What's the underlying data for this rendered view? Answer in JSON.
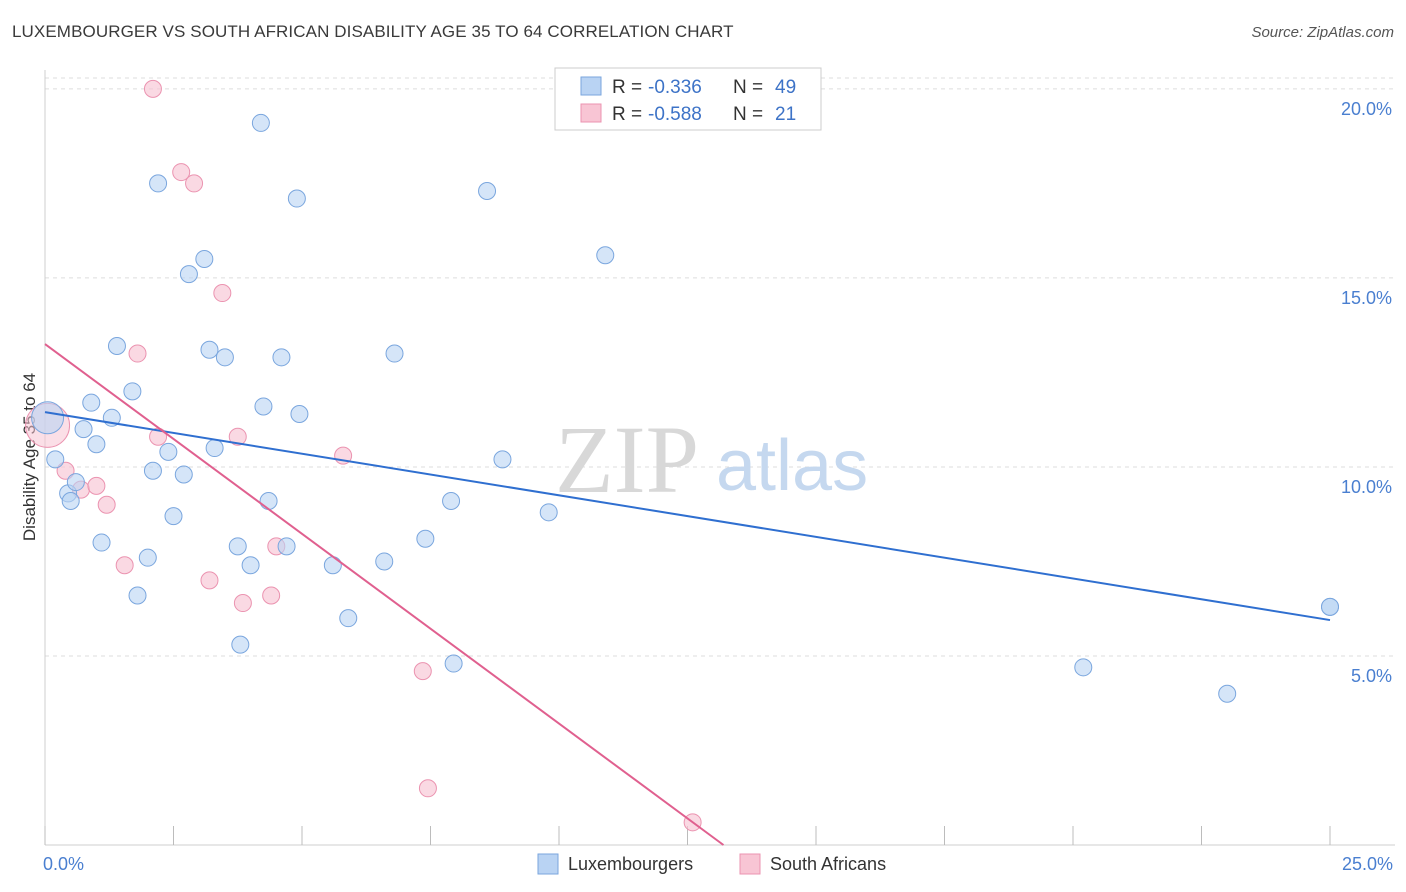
{
  "title": "LUXEMBOURGER VS SOUTH AFRICAN DISABILITY AGE 35 TO 64 CORRELATION CHART",
  "source": "Source: ZipAtlas.com",
  "watermark": {
    "zip": "ZIP",
    "atlas": "atlas"
  },
  "colors": {
    "lux_fill": "#b9d3f3",
    "lux_stroke": "#7aa6de",
    "lux_line": "#2f6fd0",
    "sa_fill": "#f8c5d4",
    "sa_stroke": "#eb93b0",
    "sa_line": "#e0608f",
    "tick_text": "#4a7fd0",
    "grid": "#dddddd"
  },
  "stats": [
    {
      "r_label": "R =",
      "r_value": "-0.336",
      "n_label": "N =",
      "n_value": "49"
    },
    {
      "r_label": "R =",
      "r_value": "-0.588",
      "n_label": "N =",
      "n_value": "21"
    }
  ],
  "chart_data": {
    "type": "scatter",
    "xlabel": "",
    "ylabel": "Disability Age 35 to 64",
    "xlim": [
      0,
      25
    ],
    "ylim": [
      0,
      20.5
    ],
    "x_tick_labels": [
      "0.0%",
      "25.0%"
    ],
    "y_ticks": [
      5,
      10,
      15,
      20
    ],
    "y_tick_labels": [
      "5.0%",
      "10.0%",
      "15.0%",
      "20.0%"
    ],
    "grid": true,
    "legend_position": "bottom",
    "series": [
      {
        "name": "Luxembourgers",
        "points": [
          [
            0.05,
            11.3
          ],
          [
            0.2,
            10.2
          ],
          [
            0.45,
            9.3
          ],
          [
            0.5,
            9.1
          ],
          [
            0.6,
            9.6
          ],
          [
            0.75,
            11.0
          ],
          [
            0.9,
            11.7
          ],
          [
            1.0,
            10.6
          ],
          [
            1.1,
            8.0
          ],
          [
            1.3,
            11.3
          ],
          [
            1.4,
            13.2
          ],
          [
            1.7,
            12.0
          ],
          [
            1.8,
            6.6
          ],
          [
            2.0,
            7.6
          ],
          [
            2.1,
            9.9
          ],
          [
            2.2,
            17.5
          ],
          [
            2.4,
            10.4
          ],
          [
            2.5,
            8.7
          ],
          [
            2.7,
            9.8
          ],
          [
            2.8,
            15.1
          ],
          [
            3.1,
            15.5
          ],
          [
            3.2,
            13.1
          ],
          [
            3.3,
            10.5
          ],
          [
            3.5,
            12.9
          ],
          [
            3.75,
            7.9
          ],
          [
            3.8,
            5.3
          ],
          [
            4.0,
            7.4
          ],
          [
            4.2,
            19.1
          ],
          [
            4.25,
            11.6
          ],
          [
            4.35,
            9.1
          ],
          [
            4.6,
            12.9
          ],
          [
            4.7,
            7.9
          ],
          [
            4.9,
            17.1
          ],
          [
            4.95,
            11.4
          ],
          [
            5.6,
            7.4
          ],
          [
            5.9,
            6.0
          ],
          [
            6.6,
            7.5
          ],
          [
            6.8,
            13.0
          ],
          [
            7.4,
            8.1
          ],
          [
            7.9,
            9.1
          ],
          [
            7.95,
            4.8
          ],
          [
            8.6,
            17.3
          ],
          [
            8.9,
            10.2
          ],
          [
            9.8,
            8.8
          ],
          [
            10.9,
            15.6
          ],
          [
            20.2,
            4.7
          ],
          [
            23.0,
            4.0
          ],
          [
            25.0,
            6.3
          ],
          [
            25.0,
            6.3
          ]
        ],
        "trend": {
          "x": [
            0,
            25
          ],
          "y": [
            11.45,
            5.95
          ]
        }
      },
      {
        "name": "South Africans",
        "points": [
          [
            0.05,
            11.1
          ],
          [
            0.4,
            9.9
          ],
          [
            0.7,
            9.4
          ],
          [
            1.0,
            9.5
          ],
          [
            1.2,
            9.0
          ],
          [
            1.55,
            7.4
          ],
          [
            1.8,
            13.0
          ],
          [
            2.1,
            20.0
          ],
          [
            2.2,
            10.8
          ],
          [
            2.65,
            17.8
          ],
          [
            2.9,
            17.5
          ],
          [
            3.2,
            7.0
          ],
          [
            3.45,
            14.6
          ],
          [
            3.75,
            10.8
          ],
          [
            3.85,
            6.4
          ],
          [
            4.4,
            6.6
          ],
          [
            4.5,
            7.9
          ],
          [
            5.8,
            10.3
          ],
          [
            7.35,
            4.6
          ],
          [
            7.45,
            1.5
          ],
          [
            12.6,
            0.6
          ]
        ],
        "trend": {
          "x": [
            0,
            13.2
          ],
          "y": [
            13.25,
            0
          ]
        }
      }
    ]
  }
}
